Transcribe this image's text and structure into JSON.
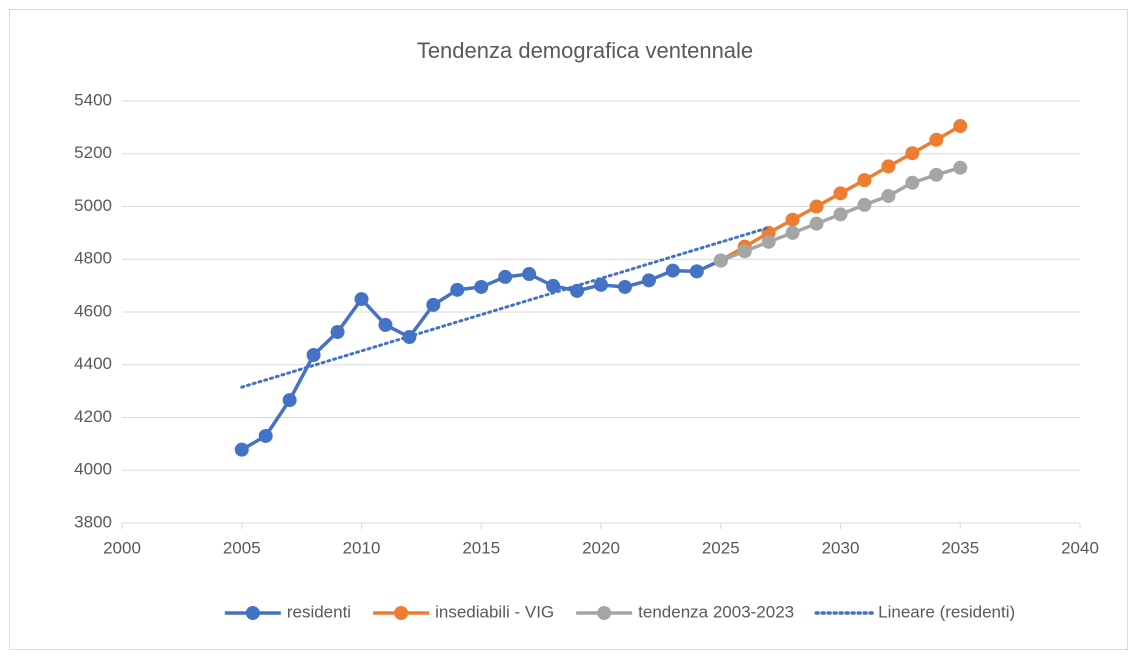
{
  "chart_data": {
    "type": "line",
    "title": "Tendenza demografica ventennale",
    "xlim": [
      2000,
      2040
    ],
    "xticks": [
      2000,
      2005,
      2010,
      2015,
      2020,
      2025,
      2030,
      2035,
      2040
    ],
    "ylim": [
      3800,
      5400
    ],
    "yticks": [
      3800,
      4000,
      4200,
      4400,
      4600,
      4800,
      5000,
      5200,
      5400
    ],
    "grid": true,
    "legend": "bottom",
    "series": [
      {
        "name": "residenti",
        "color": "#4472c4",
        "style": "solid",
        "markers": true,
        "x": [
          2005,
          2006,
          2007,
          2008,
          2009,
          2010,
          2011,
          2012,
          2013,
          2014,
          2015,
          2016,
          2017,
          2018,
          2019,
          2020,
          2021,
          2022,
          2023,
          2024,
          2025
        ],
        "values": [
          4078,
          4130,
          4266,
          4437,
          4524,
          4649,
          4551,
          4505,
          4627,
          4684,
          4695,
          4733,
          4744,
          4699,
          4680,
          4703,
          4695,
          4720,
          4757,
          4754,
          4795
        ]
      },
      {
        "name": "insediabili - VIG",
        "color": "#ed7d31",
        "style": "solid",
        "markers": true,
        "x": [
          2025,
          2026,
          2027,
          2028,
          2029,
          2030,
          2031,
          2032,
          2033,
          2034,
          2035
        ],
        "values": [
          4795,
          4848,
          4900,
          4950,
          5000,
          5050,
          5100,
          5152,
          5202,
          5253,
          5305
        ]
      },
      {
        "name": "tendenza 2003-2023",
        "color": "#a5a5a5",
        "style": "solid",
        "markers": true,
        "x": [
          2025,
          2026,
          2027,
          2028,
          2029,
          2030,
          2031,
          2032,
          2033,
          2034,
          2035
        ],
        "values": [
          4795,
          4830,
          4866,
          4900,
          4935,
          4970,
          5006,
          5040,
          5090,
          5120,
          5147
        ]
      },
      {
        "name": "Lineare (residenti)",
        "color": "#4472c4",
        "style": "dotted",
        "markers": false,
        "x": [
          2005,
          2027
        ],
        "values": [
          4315,
          4920
        ]
      }
    ]
  }
}
